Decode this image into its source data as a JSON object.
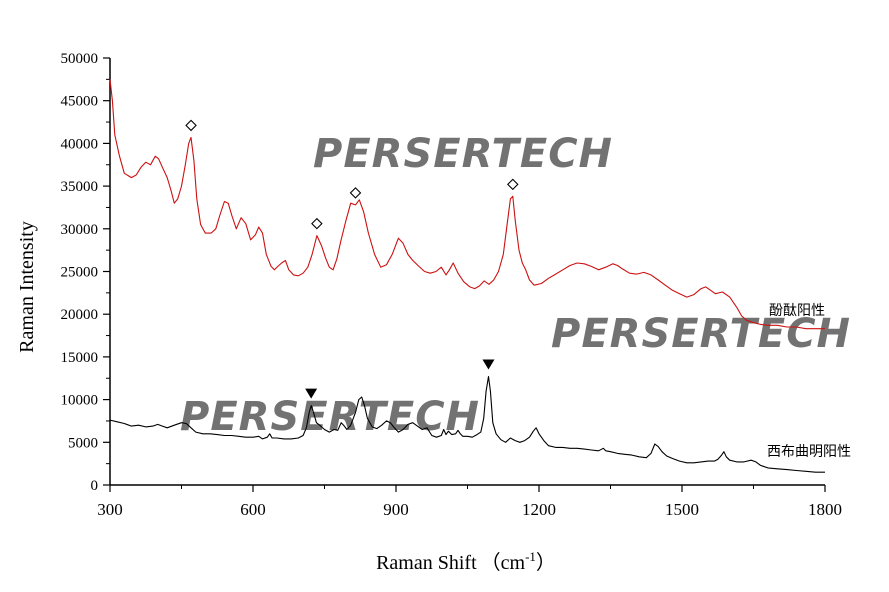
{
  "chart_data": {
    "type": "line",
    "title": "",
    "xlabel": "Raman Shift",
    "xlabel_unit": "cm",
    "xlabel_unit_exponent": "-1",
    "xlabel_unit_open": "（",
    "xlabel_unit_close": "）",
    "ylabel": "Raman Intensity",
    "xlim": [
      300,
      1800
    ],
    "ylim": [
      0,
      50000
    ],
    "x_ticks": [
      300,
      600,
      900,
      1200,
      1500,
      1800
    ],
    "y_ticks": [
      0,
      5000,
      10000,
      15000,
      20000,
      25000,
      30000,
      35000,
      40000,
      45000,
      50000
    ],
    "series": [
      {
        "name": "酚酞阳性",
        "color": "#cc1111",
        "marker": "◇",
        "marker_peaks": [
          470,
          734,
          815,
          1145
        ],
        "points": [
          [
            300,
            47500
          ],
          [
            305,
            45000
          ],
          [
            310,
            41000
          ],
          [
            320,
            38500
          ],
          [
            330,
            36500
          ],
          [
            345,
            36000
          ],
          [
            355,
            36300
          ],
          [
            365,
            37200
          ],
          [
            375,
            37800
          ],
          [
            385,
            37500
          ],
          [
            395,
            38500
          ],
          [
            402,
            38200
          ],
          [
            410,
            37200
          ],
          [
            420,
            36000
          ],
          [
            428,
            34500
          ],
          [
            435,
            33000
          ],
          [
            442,
            33500
          ],
          [
            450,
            35000
          ],
          [
            458,
            37500
          ],
          [
            465,
            40000
          ],
          [
            470,
            40700
          ],
          [
            476,
            38000
          ],
          [
            482,
            33500
          ],
          [
            490,
            30500
          ],
          [
            500,
            29500
          ],
          [
            512,
            29500
          ],
          [
            522,
            30000
          ],
          [
            530,
            31500
          ],
          [
            540,
            33200
          ],
          [
            548,
            33000
          ],
          [
            556,
            31500
          ],
          [
            565,
            30000
          ],
          [
            575,
            31300
          ],
          [
            585,
            30600
          ],
          [
            595,
            28700
          ],
          [
            605,
            29300
          ],
          [
            612,
            30200
          ],
          [
            620,
            29500
          ],
          [
            628,
            27000
          ],
          [
            638,
            25600
          ],
          [
            645,
            25200
          ],
          [
            652,
            25600
          ],
          [
            660,
            26000
          ],
          [
            668,
            26300
          ],
          [
            675,
            25200
          ],
          [
            685,
            24600
          ],
          [
            695,
            24500
          ],
          [
            705,
            24800
          ],
          [
            715,
            25500
          ],
          [
            724,
            27000
          ],
          [
            734,
            29200
          ],
          [
            744,
            28000
          ],
          [
            752,
            26600
          ],
          [
            760,
            25500
          ],
          [
            768,
            25200
          ],
          [
            776,
            26500
          ],
          [
            784,
            28500
          ],
          [
            795,
            31000
          ],
          [
            805,
            33000
          ],
          [
            815,
            32800
          ],
          [
            823,
            33400
          ],
          [
            832,
            32000
          ],
          [
            842,
            29500
          ],
          [
            855,
            27000
          ],
          [
            868,
            25500
          ],
          [
            880,
            25800
          ],
          [
            892,
            27000
          ],
          [
            905,
            28900
          ],
          [
            915,
            28300
          ],
          [
            925,
            27000
          ],
          [
            935,
            26300
          ],
          [
            948,
            25600
          ],
          [
            960,
            25000
          ],
          [
            972,
            24800
          ],
          [
            984,
            25000
          ],
          [
            995,
            25500
          ],
          [
            1005,
            24600
          ],
          [
            1012,
            25200
          ],
          [
            1020,
            26000
          ],
          [
            1030,
            24800
          ],
          [
            1042,
            23800
          ],
          [
            1055,
            23200
          ],
          [
            1065,
            23000
          ],
          [
            1075,
            23300
          ],
          [
            1085,
            23900
          ],
          [
            1095,
            23500
          ],
          [
            1105,
            24000
          ],
          [
            1115,
            25000
          ],
          [
            1125,
            27000
          ],
          [
            1133,
            30500
          ],
          [
            1140,
            33500
          ],
          [
            1145,
            33800
          ],
          [
            1150,
            31000
          ],
          [
            1158,
            27500
          ],
          [
            1165,
            26000
          ],
          [
            1172,
            25200
          ],
          [
            1180,
            24000
          ],
          [
            1190,
            23400
          ],
          [
            1205,
            23600
          ],
          [
            1220,
            24200
          ],
          [
            1235,
            24700
          ],
          [
            1250,
            25200
          ],
          [
            1265,
            25700
          ],
          [
            1280,
            26000
          ],
          [
            1295,
            25900
          ],
          [
            1310,
            25600
          ],
          [
            1325,
            25200
          ],
          [
            1340,
            25500
          ],
          [
            1355,
            25900
          ],
          [
            1365,
            25700
          ],
          [
            1375,
            25300
          ],
          [
            1390,
            24800
          ],
          [
            1405,
            24700
          ],
          [
            1420,
            24900
          ],
          [
            1435,
            24600
          ],
          [
            1450,
            24000
          ],
          [
            1465,
            23400
          ],
          [
            1480,
            22800
          ],
          [
            1495,
            22400
          ],
          [
            1510,
            22000
          ],
          [
            1525,
            22300
          ],
          [
            1540,
            23000
          ],
          [
            1550,
            23200
          ],
          [
            1560,
            22800
          ],
          [
            1570,
            22400
          ],
          [
            1585,
            22600
          ],
          [
            1600,
            22000
          ],
          [
            1615,
            20800
          ],
          [
            1625,
            19800
          ],
          [
            1635,
            19300
          ],
          [
            1650,
            19000
          ],
          [
            1665,
            18800
          ],
          [
            1680,
            18700
          ],
          [
            1700,
            18700
          ],
          [
            1720,
            18500
          ],
          [
            1740,
            18500
          ],
          [
            1760,
            18300
          ],
          [
            1780,
            18300
          ],
          [
            1800,
            18300
          ]
        ]
      },
      {
        "name": "西布曲明阳性",
        "color": "#000000",
        "marker": "▼",
        "marker_peaks": [
          722,
          1094
        ],
        "points": [
          [
            300,
            7600
          ],
          [
            315,
            7400
          ],
          [
            330,
            7200
          ],
          [
            345,
            6900
          ],
          [
            360,
            7000
          ],
          [
            375,
            6800
          ],
          [
            390,
            6900
          ],
          [
            400,
            7100
          ],
          [
            410,
            6900
          ],
          [
            420,
            6700
          ],
          [
            435,
            7000
          ],
          [
            450,
            7300
          ],
          [
            460,
            7200
          ],
          [
            470,
            6700
          ],
          [
            480,
            6200
          ],
          [
            495,
            6000
          ],
          [
            510,
            6000
          ],
          [
            525,
            5900
          ],
          [
            540,
            5800
          ],
          [
            555,
            5800
          ],
          [
            570,
            5700
          ],
          [
            585,
            5600
          ],
          [
            600,
            5600
          ],
          [
            612,
            5700
          ],
          [
            620,
            5400
          ],
          [
            630,
            5600
          ],
          [
            635,
            6000
          ],
          [
            640,
            5500
          ],
          [
            650,
            5500
          ],
          [
            665,
            5400
          ],
          [
            680,
            5400
          ],
          [
            695,
            5500
          ],
          [
            705,
            5800
          ],
          [
            712,
            6700
          ],
          [
            718,
            8500
          ],
          [
            722,
            9300
          ],
          [
            727,
            8500
          ],
          [
            733,
            7300
          ],
          [
            740,
            7000
          ],
          [
            750,
            6500
          ],
          [
            760,
            6200
          ],
          [
            770,
            6500
          ],
          [
            778,
            6400
          ],
          [
            785,
            7300
          ],
          [
            790,
            7000
          ],
          [
            797,
            6500
          ],
          [
            805,
            7000
          ],
          [
            815,
            8500
          ],
          [
            822,
            10000
          ],
          [
            828,
            10300
          ],
          [
            834,
            9300
          ],
          [
            840,
            7800
          ],
          [
            850,
            6800
          ],
          [
            860,
            6600
          ],
          [
            870,
            7000
          ],
          [
            880,
            7500
          ],
          [
            888,
            7300
          ],
          [
            895,
            6800
          ],
          [
            905,
            6200
          ],
          [
            915,
            6500
          ],
          [
            925,
            7100
          ],
          [
            935,
            7300
          ],
          [
            945,
            6900
          ],
          [
            955,
            6500
          ],
          [
            965,
            6700
          ],
          [
            975,
            5800
          ],
          [
            985,
            5600
          ],
          [
            995,
            5800
          ],
          [
            1000,
            6500
          ],
          [
            1005,
            5900
          ],
          [
            1010,
            6300
          ],
          [
            1017,
            5900
          ],
          [
            1025,
            6000
          ],
          [
            1030,
            6400
          ],
          [
            1035,
            6000
          ],
          [
            1040,
            5700
          ],
          [
            1050,
            5700
          ],
          [
            1060,
            5600
          ],
          [
            1070,
            5900
          ],
          [
            1078,
            6200
          ],
          [
            1084,
            7800
          ],
          [
            1089,
            11000
          ],
          [
            1094,
            12700
          ],
          [
            1098,
            11000
          ],
          [
            1103,
            7300
          ],
          [
            1110,
            6000
          ],
          [
            1120,
            5300
          ],
          [
            1130,
            5000
          ],
          [
            1140,
            5500
          ],
          [
            1150,
            5200
          ],
          [
            1160,
            5000
          ],
          [
            1170,
            5200
          ],
          [
            1180,
            5600
          ],
          [
            1188,
            6300
          ],
          [
            1194,
            6700
          ],
          [
            1200,
            6000
          ],
          [
            1210,
            5200
          ],
          [
            1220,
            4600
          ],
          [
            1235,
            4400
          ],
          [
            1250,
            4400
          ],
          [
            1265,
            4300
          ],
          [
            1280,
            4300
          ],
          [
            1295,
            4200
          ],
          [
            1310,
            4100
          ],
          [
            1325,
            4000
          ],
          [
            1335,
            4300
          ],
          [
            1340,
            4000
          ],
          [
            1350,
            3900
          ],
          [
            1365,
            3700
          ],
          [
            1380,
            3600
          ],
          [
            1395,
            3500
          ],
          [
            1410,
            3300
          ],
          [
            1425,
            3200
          ],
          [
            1435,
            3700
          ],
          [
            1443,
            4800
          ],
          [
            1450,
            4500
          ],
          [
            1458,
            3900
          ],
          [
            1468,
            3400
          ],
          [
            1480,
            3100
          ],
          [
            1495,
            2800
          ],
          [
            1510,
            2600
          ],
          [
            1525,
            2600
          ],
          [
            1540,
            2700
          ],
          [
            1555,
            2800
          ],
          [
            1568,
            2800
          ],
          [
            1575,
            3000
          ],
          [
            1583,
            3500
          ],
          [
            1588,
            3900
          ],
          [
            1593,
            3300
          ],
          [
            1600,
            2900
          ],
          [
            1615,
            2700
          ],
          [
            1630,
            2700
          ],
          [
            1645,
            2900
          ],
          [
            1655,
            2700
          ],
          [
            1665,
            2300
          ],
          [
            1680,
            2000
          ],
          [
            1700,
            1900
          ],
          [
            1720,
            1800
          ],
          [
            1740,
            1700
          ],
          [
            1760,
            1600
          ],
          [
            1780,
            1500
          ],
          [
            1800,
            1500
          ]
        ]
      }
    ]
  },
  "watermark": {
    "text": "PERSERTECH",
    "color_left": "#9b8ee0",
    "color_right": "#f5b68a"
  }
}
